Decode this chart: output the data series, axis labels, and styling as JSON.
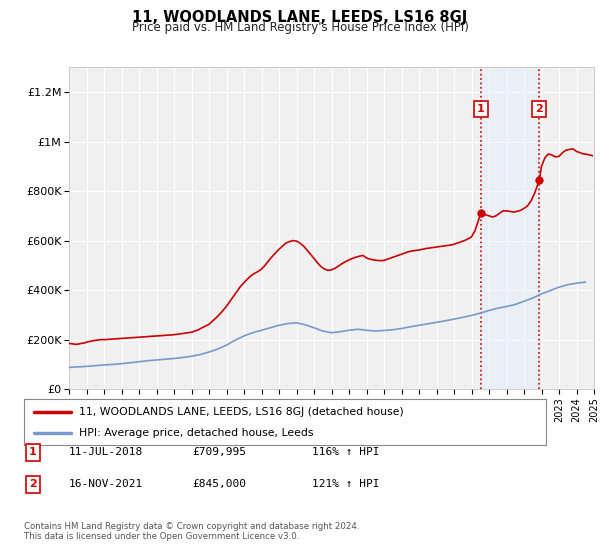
{
  "title": "11, WOODLANDS LANE, LEEDS, LS16 8GJ",
  "subtitle": "Price paid vs. HM Land Registry's House Price Index (HPI)",
  "xlim": [
    1995,
    2025
  ],
  "ylim": [
    0,
    1300000
  ],
  "yticks": [
    0,
    200000,
    400000,
    600000,
    800000,
    1000000,
    1200000
  ],
  "ytick_labels": [
    "£0",
    "£200K",
    "£400K",
    "£600K",
    "£800K",
    "£1M",
    "£1.2M"
  ],
  "xticks": [
    1995,
    1996,
    1997,
    1998,
    1999,
    2000,
    2001,
    2002,
    2003,
    2004,
    2005,
    2006,
    2007,
    2008,
    2009,
    2010,
    2011,
    2012,
    2013,
    2014,
    2015,
    2016,
    2017,
    2018,
    2019,
    2020,
    2021,
    2022,
    2023,
    2024,
    2025
  ],
  "background_color": "#ffffff",
  "plot_bg_color": "#f0f0f0",
  "grid_color": "#ffffff",
  "red_line_color": "#cc0000",
  "blue_line_color": "#7799cc",
  "vline_color": "#cc0000",
  "marker_color": "#cc0000",
  "span_color": "#ddeeff",
  "legend_label_red": "11, WOODLANDS LANE, LEEDS, LS16 8GJ (detached house)",
  "legend_label_blue": "HPI: Average price, detached house, Leeds",
  "event1_x": 2018.53,
  "event1_y": 709995,
  "event2_x": 2021.88,
  "event2_y": 845000,
  "footer1": "Contains HM Land Registry data © Crown copyright and database right 2024.",
  "footer2": "This data is licensed under the Open Government Licence v3.0.",
  "table_row1": [
    "1",
    "11-JUL-2018",
    "£709,995",
    "116% ↑ HPI"
  ],
  "table_row2": [
    "2",
    "16-NOV-2021",
    "£845,000",
    "121% ↑ HPI"
  ],
  "red_x": [
    1995.0,
    1995.1,
    1995.2,
    1995.3,
    1995.4,
    1995.5,
    1995.6,
    1995.7,
    1995.8,
    1995.9,
    1996.0,
    1996.2,
    1996.4,
    1996.6,
    1996.8,
    1997.0,
    1997.2,
    1997.4,
    1997.6,
    1997.8,
    1998.0,
    1998.2,
    1998.4,
    1998.6,
    1998.8,
    1999.0,
    1999.2,
    1999.4,
    1999.6,
    1999.8,
    2000.0,
    2000.2,
    2000.4,
    2000.6,
    2000.8,
    2001.0,
    2001.2,
    2001.4,
    2001.6,
    2001.8,
    2002.0,
    2002.2,
    2002.4,
    2002.6,
    2002.8,
    2003.0,
    2003.2,
    2003.4,
    2003.6,
    2003.8,
    2004.0,
    2004.2,
    2004.4,
    2004.6,
    2004.8,
    2005.0,
    2005.2,
    2005.4,
    2005.6,
    2005.8,
    2006.0,
    2006.2,
    2006.4,
    2006.6,
    2006.8,
    2007.0,
    2007.2,
    2007.4,
    2007.6,
    2007.8,
    2008.0,
    2008.2,
    2008.4,
    2008.6,
    2008.8,
    2009.0,
    2009.2,
    2009.4,
    2009.6,
    2009.8,
    2010.0,
    2010.2,
    2010.4,
    2010.6,
    2010.8,
    2011.0,
    2011.2,
    2011.4,
    2011.6,
    2011.8,
    2012.0,
    2012.2,
    2012.4,
    2012.6,
    2012.8,
    2013.0,
    2013.2,
    2013.4,
    2013.6,
    2013.8,
    2014.0,
    2014.2,
    2014.4,
    2014.6,
    2014.8,
    2015.0,
    2015.2,
    2015.4,
    2015.6,
    2015.8,
    2016.0,
    2016.2,
    2016.4,
    2016.6,
    2016.8,
    2017.0,
    2017.2,
    2017.4,
    2017.6,
    2017.8,
    2018.0,
    2018.2,
    2018.53,
    2019.0,
    2019.2,
    2019.4,
    2019.6,
    2019.8,
    2020.0,
    2020.2,
    2020.4,
    2020.6,
    2020.8,
    2021.0,
    2021.2,
    2021.4,
    2021.6,
    2021.88,
    2022.0,
    2022.2,
    2022.4,
    2022.6,
    2022.8,
    2023.0,
    2023.2,
    2023.4,
    2023.6,
    2023.8,
    2024.0,
    2024.2,
    2024.4,
    2024.6,
    2024.8,
    2024.9
  ],
  "red_y": [
    185000,
    184000,
    183000,
    182000,
    181000,
    182000,
    183000,
    185000,
    186000,
    187000,
    190000,
    193000,
    196000,
    198000,
    200000,
    200000,
    201000,
    202000,
    203000,
    204000,
    205000,
    206000,
    207000,
    208000,
    209000,
    210000,
    211000,
    212000,
    213000,
    214000,
    215000,
    216000,
    217000,
    218000,
    219000,
    220000,
    222000,
    224000,
    226000,
    228000,
    230000,
    235000,
    240000,
    248000,
    255000,
    262000,
    275000,
    288000,
    302000,
    318000,
    335000,
    355000,
    375000,
    395000,
    415000,
    430000,
    445000,
    458000,
    468000,
    475000,
    485000,
    500000,
    518000,
    535000,
    550000,
    565000,
    578000,
    590000,
    596000,
    600000,
    598000,
    590000,
    578000,
    562000,
    545000,
    528000,
    510000,
    495000,
    485000,
    480000,
    482000,
    488000,
    497000,
    507000,
    515000,
    522000,
    528000,
    533000,
    537000,
    540000,
    530000,
    525000,
    522000,
    520000,
    519000,
    520000,
    525000,
    530000,
    535000,
    540000,
    545000,
    550000,
    555000,
    558000,
    560000,
    562000,
    565000,
    568000,
    570000,
    572000,
    574000,
    576000,
    578000,
    580000,
    582000,
    585000,
    590000,
    595000,
    600000,
    607000,
    615000,
    640000,
    709995,
    700000,
    695000,
    700000,
    710000,
    720000,
    720000,
    718000,
    715000,
    718000,
    722000,
    730000,
    740000,
    760000,
    790000,
    845000,
    900000,
    935000,
    950000,
    945000,
    938000,
    940000,
    955000,
    965000,
    968000,
    970000,
    960000,
    955000,
    950000,
    948000,
    945000,
    943000
  ],
  "blue_x": [
    1995.0,
    1995.5,
    1996.0,
    1996.5,
    1997.0,
    1997.5,
    1998.0,
    1998.5,
    1999.0,
    1999.5,
    2000.0,
    2000.5,
    2001.0,
    2001.5,
    2002.0,
    2002.5,
    2003.0,
    2003.5,
    2004.0,
    2004.5,
    2005.0,
    2005.5,
    2006.0,
    2006.5,
    2007.0,
    2007.5,
    2008.0,
    2008.5,
    2009.0,
    2009.5,
    2010.0,
    2010.5,
    2011.0,
    2011.5,
    2012.0,
    2012.5,
    2013.0,
    2013.5,
    2014.0,
    2014.5,
    2015.0,
    2015.5,
    2016.0,
    2016.5,
    2017.0,
    2017.5,
    2018.0,
    2018.5,
    2019.0,
    2019.5,
    2020.0,
    2020.5,
    2021.0,
    2021.5,
    2022.0,
    2022.5,
    2023.0,
    2023.5,
    2024.0,
    2024.5
  ],
  "blue_y": [
    88000,
    90000,
    92000,
    95000,
    98000,
    100000,
    103000,
    107000,
    111000,
    115000,
    118000,
    121000,
    124000,
    128000,
    133000,
    140000,
    150000,
    162000,
    178000,
    198000,
    215000,
    228000,
    238000,
    248000,
    258000,
    265000,
    268000,
    260000,
    248000,
    235000,
    228000,
    232000,
    238000,
    242000,
    238000,
    235000,
    237000,
    240000,
    245000,
    252000,
    258000,
    264000,
    270000,
    276000,
    283000,
    290000,
    298000,
    307000,
    318000,
    327000,
    334000,
    342000,
    355000,
    368000,
    385000,
    398000,
    412000,
    422000,
    428000,
    432000
  ]
}
